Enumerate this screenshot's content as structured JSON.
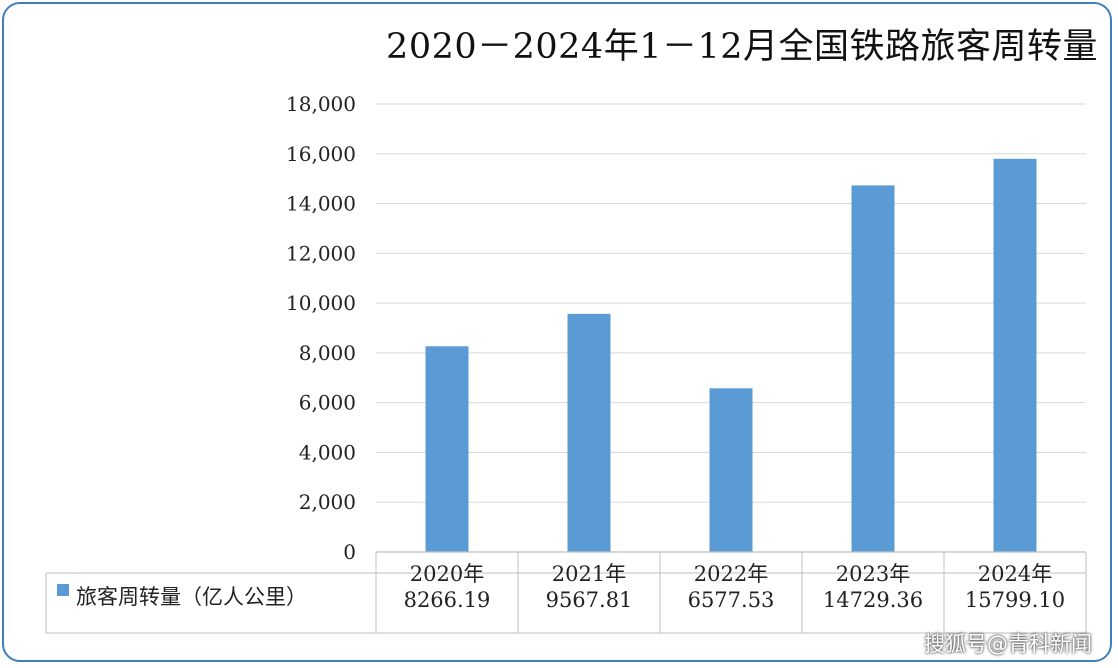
{
  "chart_data": {
    "type": "bar",
    "title": "2020－2024年1－12月全国铁路旅客周转量",
    "categories": [
      "2020年",
      "2021年",
      "2022年",
      "2023年",
      "2024年"
    ],
    "series": [
      {
        "name": "旅客周转量（亿人公里）",
        "values": [
          8266.19,
          9567.81,
          6577.53,
          14729.36,
          15799.1
        ],
        "value_labels": [
          "8266.19",
          "9567.81",
          "6577.53",
          "14729.36",
          "15799.10"
        ]
      }
    ],
    "ylim": [
      0,
      18000
    ],
    "yticks": [
      0,
      2000,
      4000,
      6000,
      8000,
      10000,
      12000,
      14000,
      16000,
      18000
    ],
    "ytick_labels": [
      "0",
      "2,000",
      "4,000",
      "6,000",
      "8,000",
      "10,000",
      "12,000",
      "14,000",
      "16,000",
      "18,000"
    ],
    "grid": true,
    "legend": "data-table-left",
    "bar_color": "#5b9bd5"
  },
  "watermark": "搜狐号@青科新闻"
}
